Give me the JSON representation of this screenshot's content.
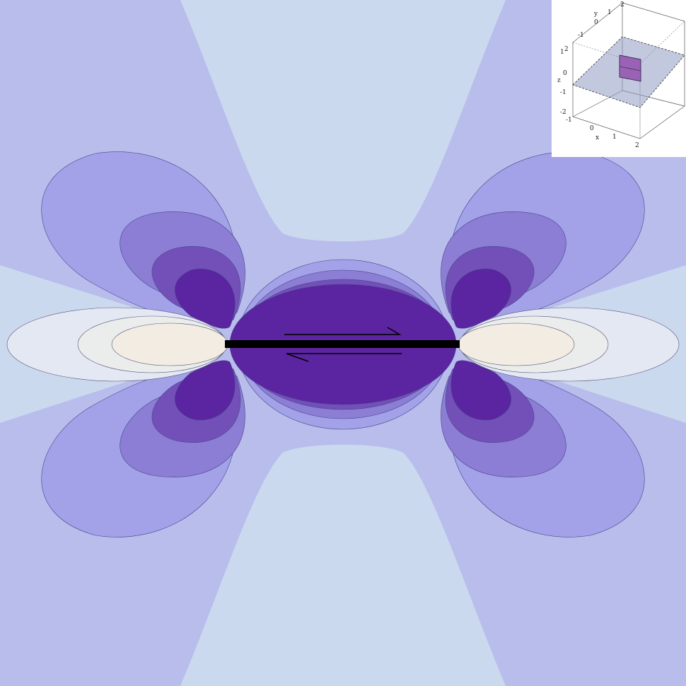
{
  "colors": {
    "far_field": "#b9bdec",
    "center_band": "#cbd9ef",
    "level_1": "#a3a2e8",
    "level_2": "#8b7ed4",
    "level_3": "#7350b8",
    "level_4": "#5b24a0",
    "tip_outer": "#e4e8f2",
    "tip_mid": "#ebecec",
    "tip_inner": "#f3ece2",
    "fault": "#000000",
    "inset_plane": "#8f9ac2",
    "inset_patch": "#9a62b4"
  },
  "inset": {
    "x_label": "x",
    "y_label": "y",
    "z_label": "z",
    "x_ticks": [
      "-1",
      "0",
      "1",
      "2"
    ],
    "y_ticks": [
      "2",
      "1",
      "0",
      "-1"
    ],
    "z_ticks": [
      "-2",
      "-1",
      "0",
      "1",
      "2"
    ]
  }
}
